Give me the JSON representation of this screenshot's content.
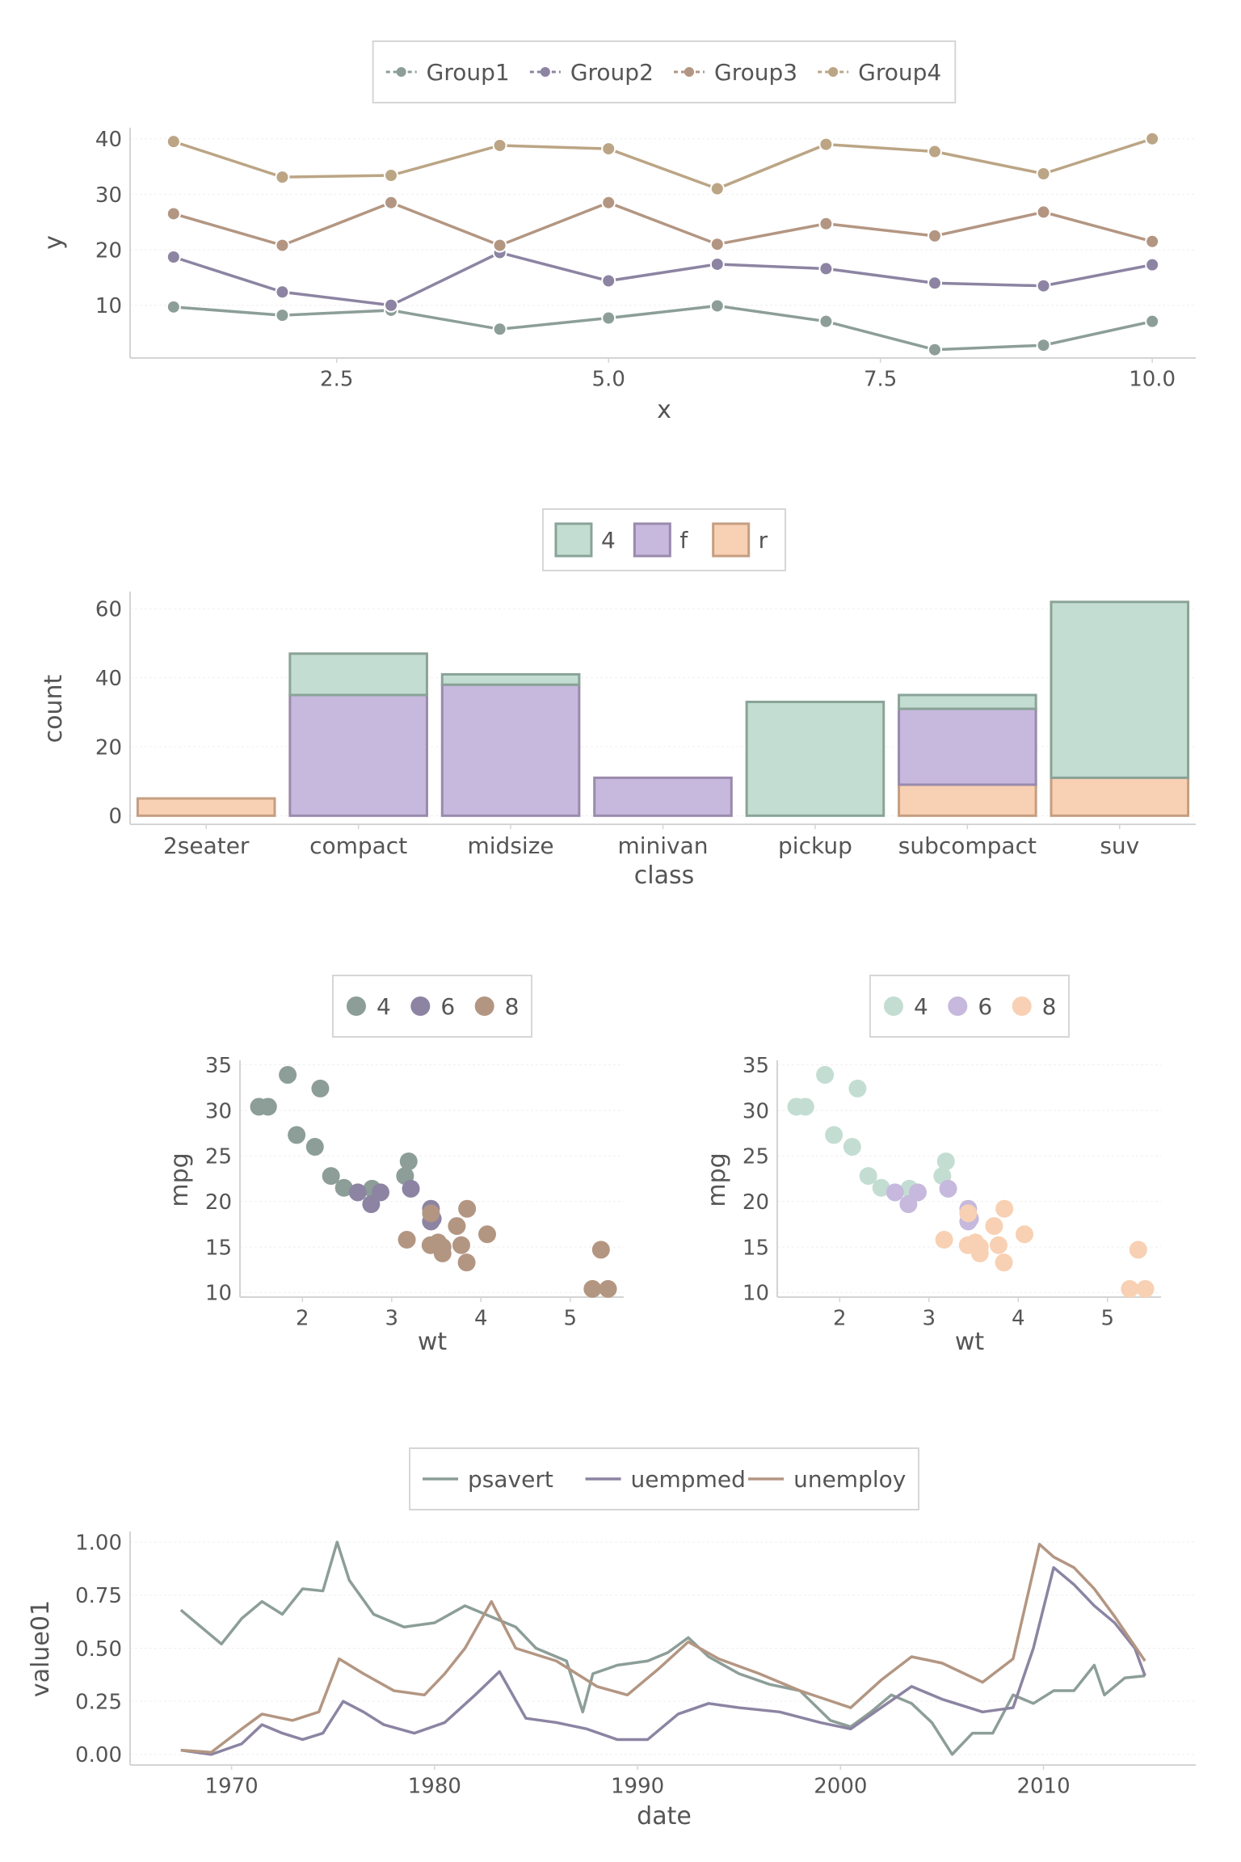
{
  "palette": {
    "dark": [
      "#8c9e97",
      "#8c84a2",
      "#b39682",
      "#bba585"
    ],
    "light": [
      "#c3ddd2",
      "#c6b9dd",
      "#f8d0b3"
    ],
    "bar_stroke": [
      "#8aa398",
      "#9a8aac",
      "#c59e81"
    ],
    "axis": "#d4d4d4",
    "grid": "#efefef",
    "text": "#555555"
  },
  "chart_data": [
    {
      "type": "line",
      "xlabel": "x",
      "ylabel": "y",
      "xlim": [
        0.6,
        10.4
      ],
      "ylim": [
        0.5,
        42
      ],
      "xticks": [
        2.5,
        5.0,
        7.5,
        10.0
      ],
      "xtick_labels": [
        "2.5",
        "5.0",
        "7.5",
        "10.0"
      ],
      "yticks": [
        10,
        20,
        30,
        40
      ],
      "ytick_labels": [
        "10",
        "20",
        "30",
        "40"
      ],
      "legend": "top",
      "grid": true,
      "x": [
        1,
        2,
        3,
        4,
        5,
        6,
        7,
        8,
        9,
        10
      ],
      "series": [
        {
          "name": "Group1",
          "values": [
            9.7,
            8.2,
            9.1,
            5.7,
            7.7,
            9.9,
            7.1,
            2.0,
            2.8,
            7.1
          ]
        },
        {
          "name": "Group2",
          "values": [
            18.7,
            12.4,
            10.0,
            19.5,
            14.4,
            17.4,
            16.6,
            14.0,
            13.5,
            17.3
          ]
        },
        {
          "name": "Group3",
          "values": [
            26.5,
            20.8,
            28.5,
            20.8,
            28.5,
            21.0,
            24.7,
            22.5,
            26.8,
            21.5
          ]
        },
        {
          "name": "Group4",
          "values": [
            39.5,
            33.1,
            33.4,
            38.8,
            38.2,
            31.0,
            39.0,
            37.7,
            33.7,
            40.0
          ]
        }
      ]
    },
    {
      "type": "bar",
      "stacked": true,
      "xlabel": "class",
      "ylabel": "count",
      "ylim": [
        -2.5,
        65
      ],
      "yticks": [
        0,
        20,
        40,
        60
      ],
      "ytick_labels": [
        "0",
        "20",
        "40",
        "60"
      ],
      "legend": "top",
      "grid": true,
      "categories": [
        "2seater",
        "compact",
        "midsize",
        "minivan",
        "pickup",
        "subcompact",
        "suv"
      ],
      "series": [
        {
          "name": "4",
          "values": [
            0,
            12,
            3,
            0,
            33,
            4,
            51
          ]
        },
        {
          "name": "f",
          "values": [
            0,
            35,
            38,
            11,
            0,
            22,
            0
          ]
        },
        {
          "name": "r",
          "values": [
            5,
            0,
            0,
            0,
            0,
            9,
            11
          ]
        }
      ]
    },
    {
      "type": "scatter",
      "xlabel": "wt",
      "ylabel": "mpg",
      "xlim": [
        1.3,
        5.6
      ],
      "ylim": [
        9.5,
        35.5
      ],
      "xticks": [
        2,
        3,
        4,
        5
      ],
      "xtick_labels": [
        "2",
        "3",
        "4",
        "5"
      ],
      "yticks": [
        10,
        15,
        20,
        25,
        30,
        35
      ],
      "ytick_labels": [
        "10",
        "15",
        "20",
        "25",
        "30",
        "35"
      ],
      "legend": "top",
      "grid": true,
      "series": [
        {
          "name": "4",
          "points": [
            [
              2.32,
              22.8
            ],
            [
              3.19,
              24.4
            ],
            [
              3.15,
              22.8
            ],
            [
              2.2,
              32.4
            ],
            [
              1.615,
              30.4
            ],
            [
              1.835,
              33.9
            ],
            [
              2.465,
              21.5
            ],
            [
              1.935,
              27.3
            ],
            [
              2.14,
              26.0
            ],
            [
              1.513,
              30.4
            ],
            [
              2.78,
              21.4
            ]
          ]
        },
        {
          "name": "6",
          "points": [
            [
              2.62,
              21.0
            ],
            [
              2.875,
              21.0
            ],
            [
              3.215,
              21.4
            ],
            [
              3.46,
              18.1
            ],
            [
              3.44,
              19.2
            ],
            [
              3.44,
              17.8
            ],
            [
              2.77,
              19.7
            ]
          ]
        },
        {
          "name": "8",
          "points": [
            [
              3.44,
              18.7
            ],
            [
              3.57,
              14.3
            ],
            [
              4.07,
              16.4
            ],
            [
              3.73,
              17.3
            ],
            [
              3.78,
              15.2
            ],
            [
              5.25,
              10.4
            ],
            [
              5.424,
              10.4
            ],
            [
              5.345,
              14.7
            ],
            [
              3.52,
              15.5
            ],
            [
              3.435,
              15.2
            ],
            [
              3.84,
              13.3
            ],
            [
              3.845,
              19.2
            ],
            [
              3.17,
              15.8
            ],
            [
              3.57,
              15.0
            ]
          ]
        }
      ]
    },
    {
      "type": "scatter",
      "xlabel": "wt",
      "ylabel": "mpg",
      "xlim": [
        1.3,
        5.6
      ],
      "ylim": [
        9.5,
        35.5
      ],
      "xticks": [
        2,
        3,
        4,
        5
      ],
      "xtick_labels": [
        "2",
        "3",
        "4",
        "5"
      ],
      "yticks": [
        10,
        15,
        20,
        25,
        30,
        35
      ],
      "ytick_labels": [
        "10",
        "15",
        "20",
        "25",
        "30",
        "35"
      ],
      "legend": "top",
      "grid": true,
      "series": [
        {
          "name": "4",
          "points": [
            [
              2.32,
              22.8
            ],
            [
              3.19,
              24.4
            ],
            [
              3.15,
              22.8
            ],
            [
              2.2,
              32.4
            ],
            [
              1.615,
              30.4
            ],
            [
              1.835,
              33.9
            ],
            [
              2.465,
              21.5
            ],
            [
              1.935,
              27.3
            ],
            [
              2.14,
              26.0
            ],
            [
              1.513,
              30.4
            ],
            [
              2.78,
              21.4
            ]
          ]
        },
        {
          "name": "6",
          "points": [
            [
              2.62,
              21.0
            ],
            [
              2.875,
              21.0
            ],
            [
              3.215,
              21.4
            ],
            [
              3.46,
              18.1
            ],
            [
              3.44,
              19.2
            ],
            [
              3.44,
              17.8
            ],
            [
              2.77,
              19.7
            ]
          ]
        },
        {
          "name": "8",
          "points": [
            [
              3.44,
              18.7
            ],
            [
              3.57,
              14.3
            ],
            [
              4.07,
              16.4
            ],
            [
              3.73,
              17.3
            ],
            [
              3.78,
              15.2
            ],
            [
              5.25,
              10.4
            ],
            [
              5.424,
              10.4
            ],
            [
              5.345,
              14.7
            ],
            [
              3.52,
              15.5
            ],
            [
              3.435,
              15.2
            ],
            [
              3.84,
              13.3
            ],
            [
              3.845,
              19.2
            ],
            [
              3.17,
              15.8
            ],
            [
              3.57,
              15.0
            ]
          ]
        }
      ]
    },
    {
      "type": "line",
      "xlabel": "date",
      "ylabel": "value01",
      "xlim": [
        1965.0,
        2017.5
      ],
      "ylim": [
        -0.05,
        1.05
      ],
      "xticks": [
        1970,
        1980,
        1990,
        2000,
        2010
      ],
      "xtick_labels": [
        "1970",
        "1980",
        "1990",
        "2000",
        "2010"
      ],
      "yticks": [
        0,
        0.25,
        0.5,
        0.75,
        1.0
      ],
      "ytick_labels": [
        "0.00",
        "0.25",
        "0.50",
        "0.75",
        "1.00"
      ],
      "legend": "top",
      "grid": true,
      "series": [
        {
          "name": "psavert",
          "points": [
            [
              1967.5,
              0.68
            ],
            [
              1968.5,
              0.6
            ],
            [
              1969.5,
              0.52
            ],
            [
              1970.5,
              0.64
            ],
            [
              1971.5,
              0.72
            ],
            [
              1972.5,
              0.66
            ],
            [
              1973.5,
              0.78
            ],
            [
              1974.5,
              0.77
            ],
            [
              1975.2,
              1.0
            ],
            [
              1975.8,
              0.82
            ],
            [
              1977,
              0.66
            ],
            [
              1978.5,
              0.6
            ],
            [
              1980,
              0.62
            ],
            [
              1981.5,
              0.7
            ],
            [
              1982.5,
              0.66
            ],
            [
              1984,
              0.6
            ],
            [
              1985,
              0.5
            ],
            [
              1986.5,
              0.44
            ],
            [
              1987.3,
              0.2
            ],
            [
              1987.8,
              0.38
            ],
            [
              1989,
              0.42
            ],
            [
              1990.5,
              0.44
            ],
            [
              1991.5,
              0.48
            ],
            [
              1992.5,
              0.55
            ],
            [
              1993.5,
              0.46
            ],
            [
              1995,
              0.38
            ],
            [
              1996.5,
              0.33
            ],
            [
              1998,
              0.3
            ],
            [
              1999.5,
              0.16
            ],
            [
              2000.5,
              0.13
            ],
            [
              2001.5,
              0.2
            ],
            [
              2002.5,
              0.28
            ],
            [
              2003.5,
              0.24
            ],
            [
              2004.5,
              0.15
            ],
            [
              2005.5,
              0.0
            ],
            [
              2006.5,
              0.1
            ],
            [
              2007.5,
              0.1
            ],
            [
              2008.5,
              0.28
            ],
            [
              2009.5,
              0.24
            ],
            [
              2010.5,
              0.3
            ],
            [
              2011.5,
              0.3
            ],
            [
              2012.5,
              0.42
            ],
            [
              2013,
              0.28
            ],
            [
              2014,
              0.36
            ],
            [
              2015,
              0.37
            ]
          ]
        },
        {
          "name": "uempmed",
          "points": [
            [
              1967.5,
              0.02
            ],
            [
              1969,
              0.0
            ],
            [
              1970.5,
              0.05
            ],
            [
              1971.5,
              0.14
            ],
            [
              1972.5,
              0.1
            ],
            [
              1973.5,
              0.07
            ],
            [
              1974.5,
              0.1
            ],
            [
              1975.5,
              0.25
            ],
            [
              1976.5,
              0.2
            ],
            [
              1977.5,
              0.14
            ],
            [
              1979,
              0.1
            ],
            [
              1980.5,
              0.15
            ],
            [
              1982,
              0.28
            ],
            [
              1983.2,
              0.39
            ],
            [
              1984.5,
              0.17
            ],
            [
              1986,
              0.15
            ],
            [
              1987.5,
              0.12
            ],
            [
              1989,
              0.07
            ],
            [
              1990.5,
              0.07
            ],
            [
              1992,
              0.19
            ],
            [
              1993.5,
              0.24
            ],
            [
              1995,
              0.22
            ],
            [
              1997,
              0.2
            ],
            [
              1999,
              0.15
            ],
            [
              2000.5,
              0.12
            ],
            [
              2002,
              0.22
            ],
            [
              2003.5,
              0.32
            ],
            [
              2005,
              0.26
            ],
            [
              2007,
              0.2
            ],
            [
              2008.5,
              0.22
            ],
            [
              2009.5,
              0.5
            ],
            [
              2010.5,
              0.88
            ],
            [
              2011.5,
              0.8
            ],
            [
              2012.5,
              0.7
            ],
            [
              2013.5,
              0.62
            ],
            [
              2014.5,
              0.5
            ],
            [
              2015,
              0.37
            ]
          ]
        },
        {
          "name": "unemploy",
          "points": [
            [
              1967.5,
              0.02
            ],
            [
              1969,
              0.01
            ],
            [
              1970.5,
              0.12
            ],
            [
              1971.5,
              0.19
            ],
            [
              1973,
              0.16
            ],
            [
              1974.3,
              0.2
            ],
            [
              1975.3,
              0.45
            ],
            [
              1976.5,
              0.38
            ],
            [
              1978,
              0.3
            ],
            [
              1979.5,
              0.28
            ],
            [
              1980.5,
              0.38
            ],
            [
              1981.5,
              0.5
            ],
            [
              1982.8,
              0.72
            ],
            [
              1984,
              0.5
            ],
            [
              1986,
              0.44
            ],
            [
              1988,
              0.32
            ],
            [
              1989.5,
              0.28
            ],
            [
              1991,
              0.4
            ],
            [
              1992.5,
              0.53
            ],
            [
              1994,
              0.45
            ],
            [
              1996,
              0.38
            ],
            [
              1998,
              0.3
            ],
            [
              2000.5,
              0.22
            ],
            [
              2002,
              0.35
            ],
            [
              2003.5,
              0.46
            ],
            [
              2005,
              0.43
            ],
            [
              2007,
              0.34
            ],
            [
              2008.5,
              0.45
            ],
            [
              2009.8,
              0.99
            ],
            [
              2010.5,
              0.93
            ],
            [
              2011.5,
              0.88
            ],
            [
              2012.5,
              0.78
            ],
            [
              2013.5,
              0.65
            ],
            [
              2015,
              0.44
            ]
          ]
        }
      ]
    }
  ]
}
